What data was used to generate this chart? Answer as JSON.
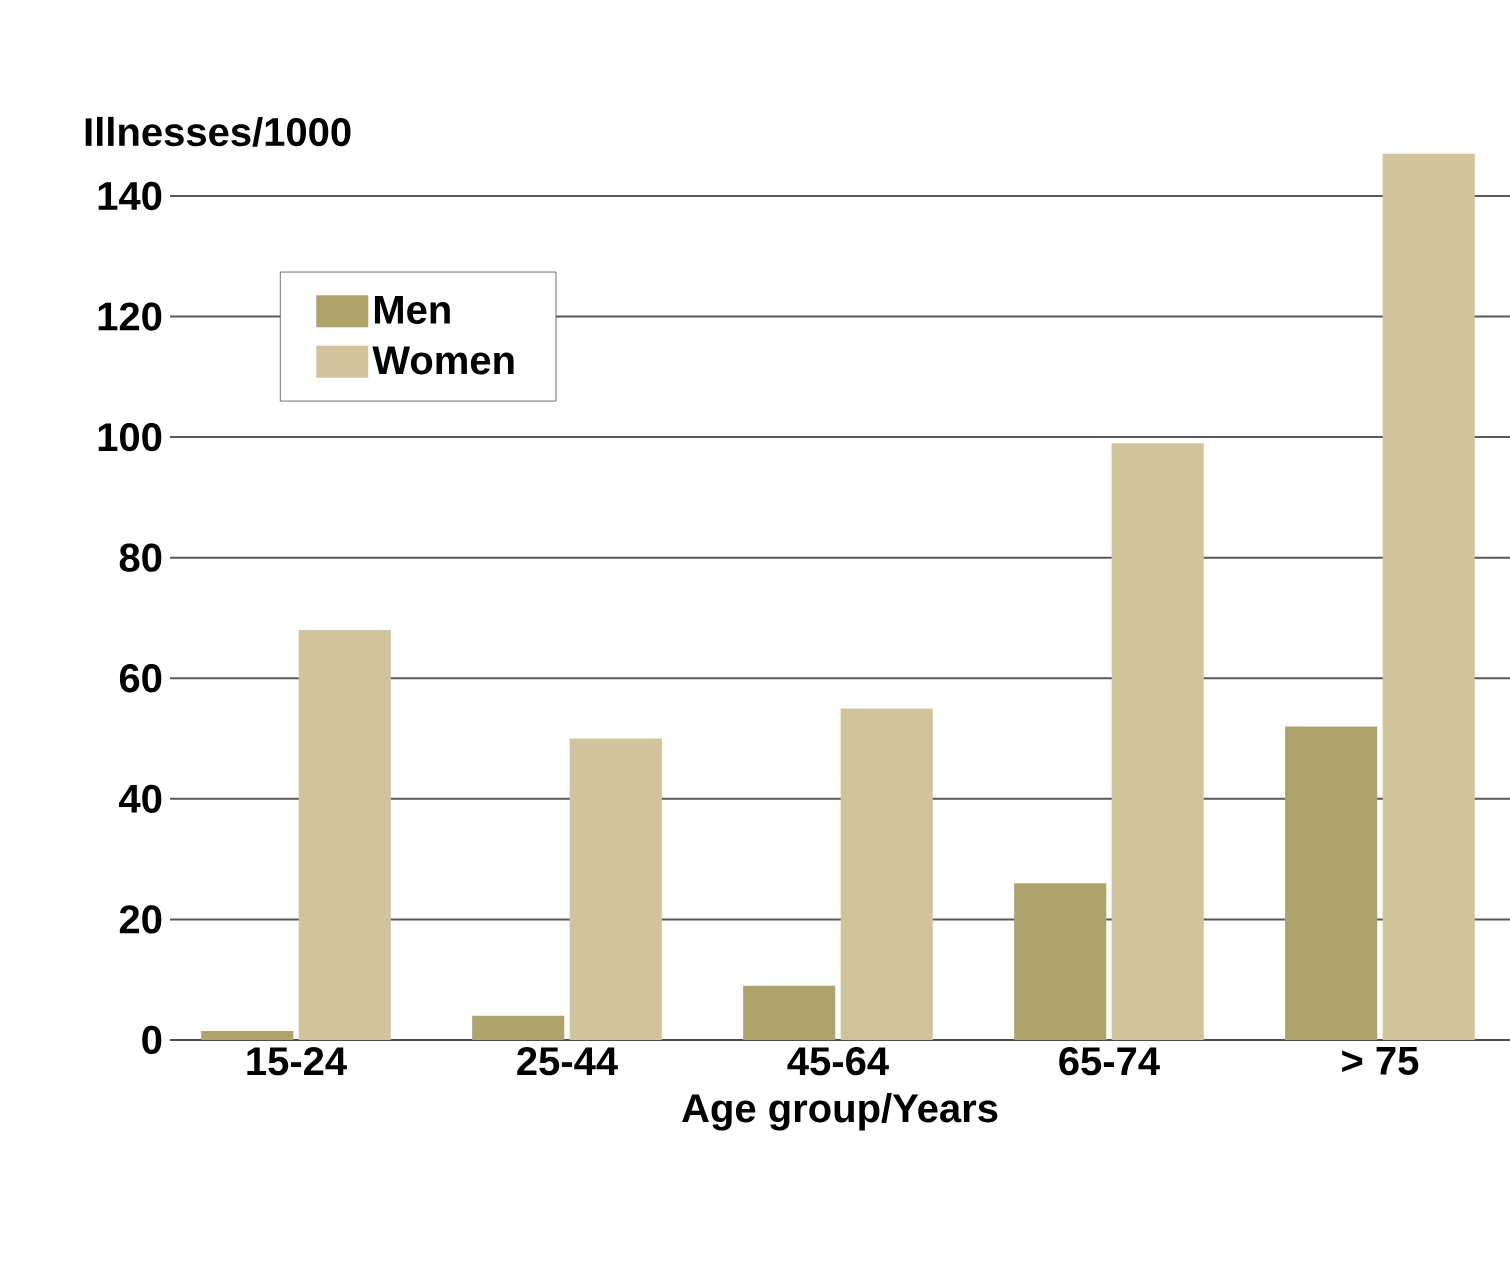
{
  "chart_data": {
    "type": "bar",
    "ylabel": "Illnesses/1000",
    "xlabel": "Age group/Years",
    "categories": [
      "15-24",
      "25-44",
      "45-64",
      "65-74",
      "> 75"
    ],
    "series": [
      {
        "name": "Men",
        "color": "#ada46c",
        "values": [
          1.5,
          4,
          9,
          26,
          52
        ]
      },
      {
        "name": "Women",
        "color": "#cfc49b",
        "values": [
          68,
          50,
          55,
          99,
          147
        ]
      }
    ],
    "ylim": [
      0,
      147
    ],
    "yticks": [
      0,
      20,
      40,
      60,
      80,
      100,
      120,
      140
    ],
    "grid": "y",
    "legend": "top left"
  }
}
